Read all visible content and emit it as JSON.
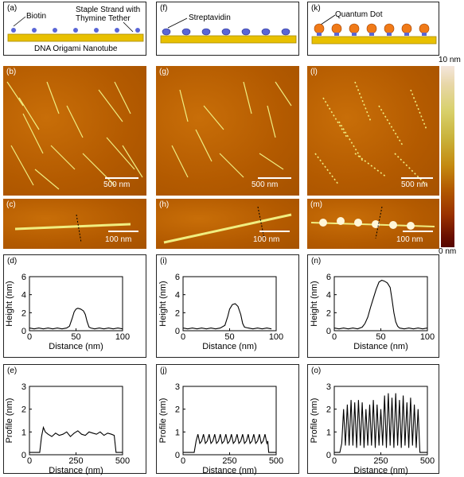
{
  "panels": {
    "a": "(a)",
    "b": "(b)",
    "c": "(c)",
    "d": "(d)",
    "e": "(e)",
    "f": "(f)",
    "g": "(g)",
    "h": "(h)",
    "i": "(i)",
    "j": "(j)",
    "k": "(k)",
    "l": "(l)",
    "m": "(m)",
    "n": "(n)",
    "o": "(o)"
  },
  "schematic": {
    "biotin": "Biotin",
    "staple_line1": "Staple Strand with",
    "staple_line2": "Thymine Tether",
    "nanotube": "DNA Origami Nanotube",
    "streptavidin": "Streptavidin",
    "quantum_dot": "Quantum Dot"
  },
  "scalebars": {
    "large": "500 nm",
    "small": "100 nm"
  },
  "colorbar": {
    "max": "10 nm",
    "min": "0 nm"
  },
  "colors": {
    "afm_bg": "#b35a00",
    "tube": "#f0ee80",
    "schematic_tube": "#e8c000",
    "protein": "#5a66d6",
    "qdot": "#f07a18"
  },
  "chart_data": [
    {
      "type": "line",
      "panel": "d",
      "xlabel": "Distance (nm)",
      "ylabel": "Height (nm)",
      "xlim": [
        0,
        100
      ],
      "ylim": [
        0,
        6
      ],
      "xticks": [
        "0",
        "50",
        "100"
      ],
      "yticks": [
        "0",
        "2",
        "4",
        "6"
      ],
      "x": [
        0,
        5,
        10,
        15,
        20,
        25,
        30,
        35,
        40,
        43,
        46,
        48,
        50,
        52,
        55,
        58,
        60,
        62,
        64,
        66,
        70,
        75,
        80,
        85,
        90,
        95,
        100
      ],
      "y": [
        0.3,
        0.2,
        0.3,
        0.2,
        0.3,
        0.2,
        0.3,
        0.2,
        0.3,
        0.5,
        1.4,
        2.1,
        2.4,
        2.5,
        2.4,
        2.2,
        1.8,
        1.0,
        0.4,
        0.3,
        0.2,
        0.3,
        0.2,
        0.3,
        0.2,
        0.3,
        0.2
      ]
    },
    {
      "type": "line",
      "panel": "e",
      "xlabel": "Distance (nm)",
      "ylabel": "Profile (nm)",
      "xlim": [
        0,
        500
      ],
      "ylim": [
        0,
        3
      ],
      "xticks": [
        "0",
        "250",
        "500"
      ],
      "yticks": [
        "0",
        "1",
        "2",
        "3"
      ],
      "x": [
        0,
        20,
        40,
        55,
        65,
        75,
        85,
        100,
        120,
        140,
        160,
        180,
        200,
        220,
        240,
        260,
        280,
        300,
        320,
        340,
        360,
        380,
        400,
        420,
        440,
        455,
        465,
        475,
        490,
        500
      ],
      "y": [
        0.1,
        0.1,
        0.1,
        0.1,
        0.8,
        1.2,
        1.0,
        0.9,
        0.8,
        0.95,
        0.85,
        0.9,
        1.0,
        0.8,
        0.95,
        1.05,
        0.9,
        0.85,
        1.0,
        0.95,
        0.9,
        1.0,
        0.85,
        0.95,
        0.9,
        0.85,
        0.1,
        0.1,
        0.1,
        0.1
      ]
    },
    {
      "type": "line",
      "panel": "i",
      "xlabel": "Distance (nm)",
      "ylabel": "Height (nm)",
      "xlim": [
        0,
        100
      ],
      "ylim": [
        0,
        6
      ],
      "xticks": [
        "0",
        "50",
        "100"
      ],
      "yticks": [
        "0",
        "2",
        "4",
        "6"
      ],
      "x": [
        0,
        5,
        10,
        15,
        20,
        25,
        30,
        35,
        40,
        45,
        48,
        50,
        53,
        56,
        59,
        62,
        64,
        66,
        70,
        75,
        80,
        85,
        90,
        95
      ],
      "y": [
        0.3,
        0.2,
        0.3,
        0.2,
        0.3,
        0.2,
        0.3,
        0.2,
        0.3,
        0.6,
        1.6,
        2.4,
        2.9,
        3.0,
        2.7,
        1.8,
        0.8,
        0.4,
        0.3,
        0.2,
        0.3,
        0.2,
        0.3,
        0.2
      ]
    },
    {
      "type": "line",
      "panel": "j",
      "xlabel": "Distance (nm)",
      "ylabel": "Profile (nm)",
      "xlim": [
        0,
        500
      ],
      "ylim": [
        0,
        3
      ],
      "xticks": [
        "0",
        "250",
        "500"
      ],
      "yticks": [
        "0",
        "1",
        "2",
        "3"
      ],
      "x": [
        0,
        20,
        40,
        60,
        70,
        80,
        90,
        100,
        110,
        120,
        130,
        140,
        150,
        160,
        170,
        180,
        190,
        200,
        210,
        220,
        230,
        240,
        250,
        260,
        270,
        280,
        290,
        300,
        310,
        320,
        330,
        340,
        350,
        360,
        370,
        380,
        390,
        400,
        410,
        420,
        430,
        440,
        450,
        455,
        460,
        480,
        500
      ],
      "y": [
        0.1,
        0.1,
        0.1,
        0.1,
        0.6,
        0.9,
        0.5,
        0.6,
        0.9,
        0.5,
        0.6,
        0.9,
        0.5,
        0.6,
        0.9,
        0.5,
        0.6,
        0.9,
        0.5,
        0.6,
        0.9,
        0.5,
        0.6,
        0.9,
        0.5,
        0.6,
        0.9,
        0.5,
        0.6,
        0.9,
        0.5,
        0.6,
        0.9,
        0.5,
        0.6,
        0.9,
        0.5,
        0.6,
        0.9,
        0.5,
        0.6,
        0.9,
        0.5,
        0.6,
        0.1,
        0.1,
        0.1
      ]
    },
    {
      "type": "line",
      "panel": "n",
      "xlabel": "Distance (nm)",
      "ylabel": "Height (nm)",
      "xlim": [
        0,
        100
      ],
      "ylim": [
        0,
        6
      ],
      "xticks": [
        "0",
        "50",
        "100"
      ],
      "yticks": [
        "0",
        "2",
        "4",
        "6"
      ],
      "x": [
        0,
        5,
        10,
        15,
        20,
        25,
        30,
        33,
        36,
        39,
        42,
        45,
        48,
        51,
        54,
        57,
        60,
        62,
        64,
        66,
        68,
        70,
        75,
        80,
        85,
        90,
        95,
        100
      ],
      "y": [
        0.3,
        0.2,
        0.3,
        0.2,
        0.3,
        0.2,
        0.4,
        0.8,
        1.5,
        2.6,
        3.6,
        4.6,
        5.4,
        5.6,
        5.5,
        5.3,
        4.8,
        3.5,
        2.0,
        1.0,
        0.5,
        0.3,
        0.2,
        0.3,
        0.2,
        0.3,
        0.2,
        0.3
      ]
    },
    {
      "type": "line",
      "panel": "o",
      "xlabel": "Distance (nm)",
      "ylabel": "Profile (nm)",
      "xlim": [
        0,
        500
      ],
      "ylim": [
        0,
        3
      ],
      "xticks": [
        "0",
        "250",
        "500"
      ],
      "yticks": [
        "0",
        "1",
        "2",
        "3"
      ],
      "x": [
        0,
        30,
        40,
        50,
        60,
        70,
        80,
        90,
        100,
        110,
        120,
        130,
        140,
        150,
        160,
        170,
        180,
        190,
        200,
        210,
        220,
        230,
        240,
        250,
        260,
        270,
        280,
        290,
        300,
        310,
        320,
        330,
        340,
        350,
        360,
        370,
        380,
        390,
        400,
        410,
        420,
        430,
        440,
        450,
        460,
        470,
        480,
        490,
        500
      ],
      "y": [
        0.1,
        0.1,
        0.5,
        2.0,
        0.4,
        2.2,
        0.4,
        2.4,
        0.4,
        2.3,
        0.3,
        2.4,
        0.4,
        2.3,
        0.3,
        2.0,
        0.4,
        2.2,
        0.4,
        2.4,
        0.3,
        2.2,
        0.4,
        2.0,
        0.4,
        2.6,
        0.3,
        2.7,
        0.4,
        2.5,
        0.3,
        2.7,
        0.4,
        2.4,
        0.3,
        2.6,
        0.4,
        2.3,
        0.3,
        2.5,
        0.4,
        2.2,
        0.3,
        2.0,
        0.1,
        0.1,
        0.1,
        0.1,
        0.1
      ]
    }
  ]
}
